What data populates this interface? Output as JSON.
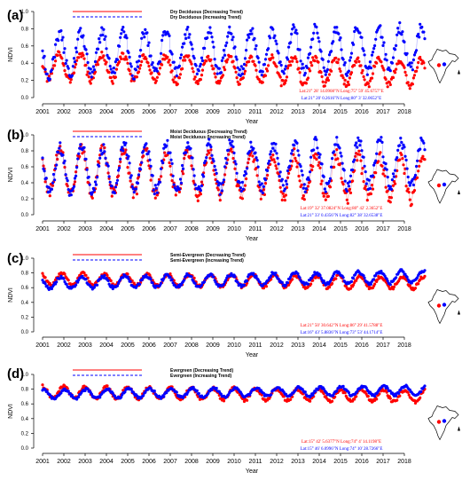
{
  "figure": {
    "years": [
      "2001",
      "2002",
      "2003",
      "2004",
      "2005",
      "2006",
      "2007",
      "2008",
      "2009",
      "2010",
      "2011",
      "2012",
      "2013",
      "2014",
      "2015",
      "2016",
      "2017",
      "2018"
    ],
    "ylabel": "NDVI",
    "xlabel": "Year"
  },
  "chart_data": [
    {
      "type": "scatter",
      "panel_label": "(a)",
      "legend": [
        "Dry Deciduous (Decreasing Trend)",
        "Dry Deciduous (Increasing Trend)"
      ],
      "coords_decreasing": "Lat:21° 28' 14.0908\"N    Long:75° 59' 45.6757\"E",
      "coords_increasing": "Lat:21° 20' 0.2616\"N    Long:80° 3' 32.0652\"E",
      "xlabel": "Year",
      "ylabel": "NDVI",
      "xlim": [
        2001,
        2019
      ],
      "ylim": [
        0,
        1.0
      ],
      "yticks": [
        "0.0",
        "0.2",
        "0.4",
        "0.6",
        "0.8",
        "1.0"
      ],
      "series": [
        {
          "name": "Dry Deciduous (Decreasing Trend)",
          "color": "#ff0000",
          "base": 0.36,
          "amplitude": 0.15,
          "trend": -0.004,
          "peak_phase": 0.78
        },
        {
          "name": "Dry Deciduous (Increasing Trend)",
          "color": "#0000ff",
          "base": 0.5,
          "amplitude": 0.24,
          "trend": 0.004,
          "peak_phase": 0.8
        }
      ]
    },
    {
      "type": "scatter",
      "panel_label": "(b)",
      "legend": [
        "Moist Deciduous (Decreasing Trend)",
        "Moist Deciduous (Increasing Trend)"
      ],
      "coords_decreasing": "Lat:19° 32' 37.0824\"N    Long:80° 42' 2.3652\"E",
      "coords_increasing": "Lat:21° 33' 0.4356\"N    Long:82° 38' 32.6538\"E",
      "xlabel": "Year",
      "ylabel": "NDVI",
      "xlim": [
        2001,
        2019
      ],
      "ylim": [
        0,
        1.0
      ],
      "yticks": [
        "0.0",
        "0.2",
        "0.4",
        "0.6",
        "0.8",
        "1.0"
      ],
      "series": [
        {
          "name": "Moist Deciduous (Decreasing Trend)",
          "color": "#ff0000",
          "base": 0.56,
          "amplitude": 0.27,
          "trend": -0.006,
          "peak_phase": 0.82
        },
        {
          "name": "Moist Deciduous (Increasing Trend)",
          "color": "#0000ff",
          "base": 0.55,
          "amplitude": 0.28,
          "trend": 0.006,
          "peak_phase": 0.84
        }
      ]
    },
    {
      "type": "scatter",
      "panel_label": "(c)",
      "legend": [
        "Semi-Evergreen (Decreasing Trend)",
        "Semi-Evergreen (Increasing Trend)"
      ],
      "coords_decreasing": "Lat:21° 50' 30.642\"N    Long:86° 29' 41.5788\"E",
      "coords_increasing": "Lat:16° 43' 5.8836\"N    Long:73° 53' 44.1714\"E",
      "xlabel": "Year",
      "ylabel": "NDVI",
      "xlim": [
        2001,
        2019
      ],
      "ylim": [
        0,
        1.0
      ],
      "yticks": [
        "0.0",
        "0.2",
        "0.4",
        "0.6",
        "0.8",
        "1.0"
      ],
      "series": [
        {
          "name": "Semi-Evergreen (Decreasing Trend)",
          "color": "#ff0000",
          "base": 0.72,
          "amplitude": 0.08,
          "trend": -0.003,
          "peak_phase": 0.9
        },
        {
          "name": "Semi-Evergreen (Increasing Trend)",
          "color": "#0000ff",
          "base": 0.66,
          "amplitude": 0.08,
          "trend": 0.005,
          "peak_phase": 0.85
        }
      ]
    },
    {
      "type": "scatter",
      "panel_label": "(d)",
      "legend": [
        "Evergreen (Decreasing Trend)",
        "Evergreen (Increasing Trend)"
      ],
      "coords_decreasing": "Lat:15° 42' 5.6377\"N    Long:74° 4' 14.1198\"E",
      "coords_increasing": "Lat:15° 46' 6.0996\"N    Long:74° 10' 28.7266\"E",
      "xlabel": "Year",
      "ylabel": "NDVI",
      "xlim": [
        2001,
        2019
      ],
      "ylim": [
        0,
        1.0
      ],
      "yticks": [
        "0.0",
        "0.2",
        "0.4",
        "0.6",
        "0.8",
        "1.0"
      ],
      "series": [
        {
          "name": "Evergreen (Decreasing Trend)",
          "color": "#ff0000",
          "base": 0.76,
          "amplitude": 0.08,
          "trend": -0.003,
          "peak_phase": 0.0
        },
        {
          "name": "Evergreen (Increasing Trend)",
          "color": "#0000ff",
          "base": 0.73,
          "amplitude": 0.06,
          "trend": 0.003,
          "peak_phase": 0.05
        }
      ]
    }
  ]
}
